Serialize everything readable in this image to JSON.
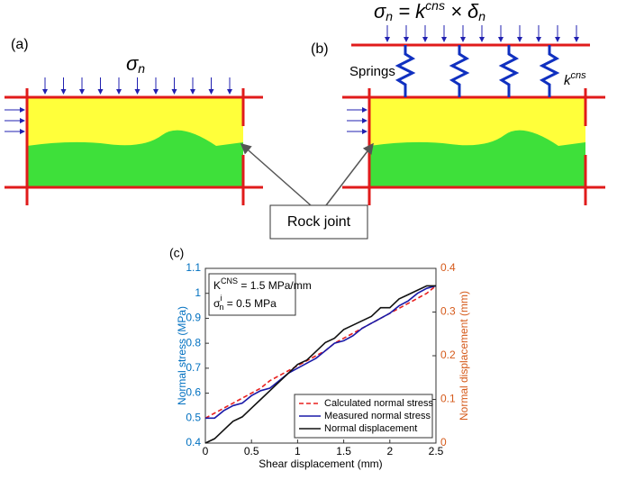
{
  "diagram": {
    "panel_a": "(a)",
    "panel_b": "(b)",
    "panel_c": "(c)",
    "sigma_a": {
      "base": "σ",
      "sub": "n"
    },
    "equation": {
      "p1": "σ",
      "p2": "n",
      "p3": " = k",
      "p4": "cns",
      "p5": " × δ",
      "p6": "n"
    },
    "springs": "Springs",
    "k_label": {
      "base": "k",
      "sup": "cns"
    },
    "rock_joint": "Rock joint"
  },
  "chart_data": {
    "type": "line",
    "xlabel": "Shear displacement (mm)",
    "ylabel": "Normal stress (MPa)",
    "y2label": "Normal displacement (mm)",
    "annotation": {
      "k_base": "K",
      "k_sup": "CNS",
      "k_rest": " = 1.5 MPa/mm",
      "s_base": "σ",
      "s_sup": "i",
      "s_sub": "n",
      "s_rest": " = 0.5 MPa"
    },
    "x": [
      0,
      0.1,
      0.2,
      0.3,
      0.4,
      0.5,
      0.6,
      0.7,
      0.8,
      0.9,
      1.0,
      1.1,
      1.2,
      1.3,
      1.4,
      1.5,
      1.6,
      1.7,
      1.8,
      1.9,
      2.0,
      2.1,
      2.2,
      2.3,
      2.4,
      2.5
    ],
    "series": [
      {
        "name": "Calculated normal stress",
        "color": "#e8201e",
        "dashed": true,
        "values": [
          0.5,
          0.52,
          0.54,
          0.56,
          0.58,
          0.6,
          0.62,
          0.65,
          0.67,
          0.69,
          0.71,
          0.73,
          0.75,
          0.77,
          0.8,
          0.82,
          0.84,
          0.86,
          0.88,
          0.9,
          0.92,
          0.94,
          0.96,
          0.98,
          1.0,
          1.03
        ]
      },
      {
        "name": "Measured normal stress",
        "color": "#1a1aa8",
        "values": [
          0.5,
          0.5,
          0.53,
          0.55,
          0.56,
          0.59,
          0.61,
          0.62,
          0.65,
          0.68,
          0.7,
          0.72,
          0.74,
          0.77,
          0.8,
          0.81,
          0.83,
          0.86,
          0.88,
          0.9,
          0.92,
          0.95,
          0.97,
          1.0,
          1.02,
          1.03
        ]
      },
      {
        "name": "Normal displacement",
        "color": "#111111",
        "axis": "y2",
        "values": [
          0,
          0.01,
          0.03,
          0.05,
          0.06,
          0.08,
          0.1,
          0.12,
          0.14,
          0.16,
          0.18,
          0.19,
          0.21,
          0.23,
          0.24,
          0.26,
          0.27,
          0.28,
          0.29,
          0.31,
          0.31,
          0.33,
          0.34,
          0.35,
          0.36,
          0.36
        ]
      }
    ],
    "xlim": [
      0,
      2.5
    ],
    "xticks": [
      0,
      0.5,
      1,
      1.5,
      2,
      2.5
    ],
    "ylim": [
      0.4,
      1.1
    ],
    "yticks": [
      0.4,
      0.5,
      0.6,
      0.7,
      0.8,
      0.9,
      1,
      1.1
    ],
    "y2lim": [
      0,
      0.4
    ],
    "y2ticks": [
      0,
      0.1,
      0.2,
      0.3,
      0.4
    ],
    "ycolor": "#0070c0",
    "y2color": "#d55a1b"
  }
}
